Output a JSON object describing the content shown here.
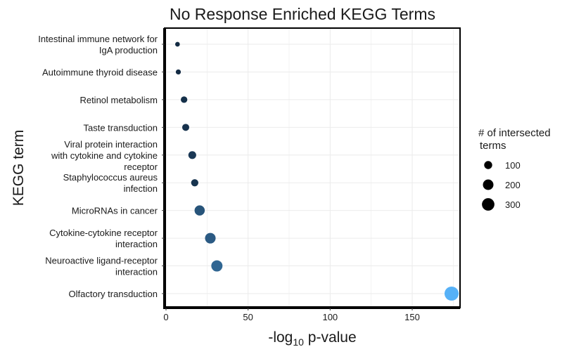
{
  "chart_data": {
    "type": "scatter",
    "title": "No Response Enriched KEGG Terms",
    "xlabel_main": "-log",
    "xlabel_sub": "10",
    "xlabel_tail": " p-value",
    "ylabel": "KEGG term",
    "x_ticks": [
      "0",
      "50",
      "100",
      "150"
    ],
    "xlim": [
      0,
      180
    ],
    "grid": true,
    "legend_position": "right",
    "legend": {
      "title_lines": [
        "# of intersected",
        "terms"
      ],
      "entries": [
        {
          "label": "100",
          "size": 100
        },
        {
          "label": "200",
          "size": 200
        },
        {
          "label": "300",
          "size": 300
        }
      ]
    },
    "color_scale": {
      "low": "#132B43",
      "high": "#56B1F7"
    },
    "points": [
      {
        "term_lines": [
          "Intestinal immune network for",
          "IgA production"
        ],
        "x": 7,
        "size": 15
      },
      {
        "term_lines": [
          "Autoimmune thyroid disease"
        ],
        "x": 7.5,
        "size": 20
      },
      {
        "term_lines": [
          "Retinol metabolism"
        ],
        "x": 11,
        "size": 45
      },
      {
        "term_lines": [
          "Taste transduction"
        ],
        "x": 12,
        "size": 55
      },
      {
        "term_lines": [
          "Viral protein interaction",
          "with cytokine and cytokine",
          "receptor"
        ],
        "x": 16,
        "size": 75
      },
      {
        "term_lines": [
          "Staphylococcus aureus",
          "infection"
        ],
        "x": 17.5,
        "size": 60
      },
      {
        "term_lines": [
          "MicroRNAs in cancer"
        ],
        "x": 20.5,
        "size": 150
      },
      {
        "term_lines": [
          "Cytokine-cytokine receptor",
          "interaction"
        ],
        "x": 27,
        "size": 165
      },
      {
        "term_lines": [
          "Neuroactive ligand-receptor",
          "interaction"
        ],
        "x": 31,
        "size": 190
      },
      {
        "term_lines": [
          "Olfactory transduction"
        ],
        "x": 174,
        "size": 330
      }
    ]
  }
}
